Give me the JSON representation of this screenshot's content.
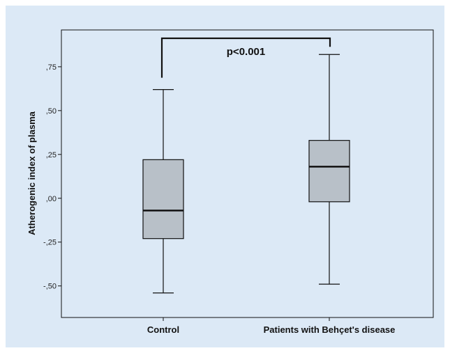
{
  "chart_data": {
    "type": "box",
    "ylabel": "Atherogenic index of plasma",
    "ylim": [
      -0.68,
      0.96
    ],
    "y_ticks": [
      -0.5,
      -0.25,
      0.0,
      0.25,
      0.5,
      0.75
    ],
    "y_tick_labels": [
      "-,50",
      "-,25",
      ",00",
      ",25",
      ",50",
      ",75"
    ],
    "categories": [
      "Control",
      "Patients with Behçet's disease"
    ],
    "boxes": [
      {
        "category": "Control",
        "min": -0.54,
        "q1": -0.23,
        "median": -0.07,
        "q3": 0.22,
        "max": 0.62
      },
      {
        "category": "Patients with Behçet's disease",
        "min": -0.49,
        "q1": -0.02,
        "median": 0.18,
        "q3": 0.33,
        "max": 0.82
      }
    ],
    "annotation": {
      "text": "p<0.001"
    },
    "colors": {
      "box_fill": "#b8c0c8",
      "background": "#dce9f6",
      "line": "#111111"
    }
  }
}
